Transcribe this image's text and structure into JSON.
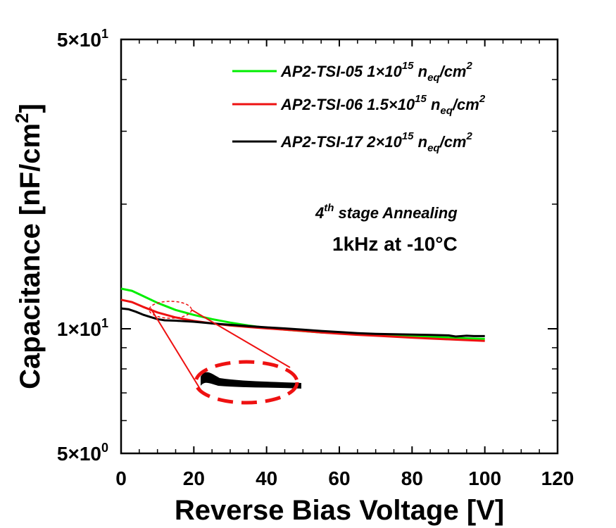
{
  "chart_data": {
    "type": "line",
    "xlabel": "Reverse Bias Voltage [V]",
    "ylabel": "Capacitance [nF/cm²]",
    "ylabel_base": "Capacitance [nF/cm",
    "ylabel_sup": "2",
    "ylabel_end": "]",
    "xlim": [
      0,
      120
    ],
    "ylim": [
      5,
      50
    ],
    "yscale": "log",
    "xticks": [
      "0",
      "20",
      "40",
      "60",
      "80",
      "100",
      "120"
    ],
    "xtick_values": [
      0,
      20,
      40,
      60,
      80,
      100,
      120
    ],
    "yticks": [
      {
        "value": 5,
        "mantissa": "5×10",
        "exp": "0"
      },
      {
        "value": 10,
        "mantissa": "1×10",
        "exp": "1"
      },
      {
        "value": 50,
        "mantissa": "5×10",
        "exp": "1"
      }
    ],
    "legend_position": "top-right",
    "series": [
      {
        "name": "AP2-TSI-05 1×10¹⁵ neq/cm²",
        "label_main": "AP2-TSI-05 1×10",
        "label_exp": "15",
        "label_n": " n",
        "label_sub": "eq",
        "label_unit": "/cm",
        "label_unit_sup": "2",
        "color": "#00ee00",
        "x": [
          0,
          3,
          6,
          10,
          15,
          20,
          25,
          30,
          35,
          40,
          45,
          50,
          55,
          60,
          65,
          70,
          75,
          80,
          85,
          90,
          95,
          100
        ],
        "y": [
          12.5,
          12.35,
          12.0,
          11.55,
          11.1,
          10.8,
          10.55,
          10.35,
          10.18,
          10.05,
          9.95,
          9.87,
          9.8,
          9.75,
          9.7,
          9.66,
          9.63,
          9.59,
          9.56,
          9.52,
          9.48,
          9.45
        ]
      },
      {
        "name": "AP2-TSI-06 1.5×10¹⁵ neq/cm²",
        "label_main": "AP2-TSI-06 1.5×10",
        "label_exp": "15",
        "label_n": " n",
        "label_sub": "eq",
        "label_unit": "/cm",
        "label_unit_sup": "2",
        "color": "#ee1111",
        "x": [
          0,
          3,
          6,
          10,
          15,
          20,
          25,
          30,
          35,
          40,
          45,
          50,
          55,
          60,
          65,
          70,
          75,
          80,
          85,
          90,
          95,
          100
        ],
        "y": [
          11.75,
          11.6,
          11.3,
          10.95,
          10.65,
          10.45,
          10.3,
          10.18,
          10.1,
          10.02,
          9.95,
          9.88,
          9.8,
          9.73,
          9.67,
          9.62,
          9.57,
          9.52,
          9.47,
          9.43,
          9.39,
          9.35
        ]
      },
      {
        "name": "AP2-TSI-17 2×10¹⁵ neq/cm²",
        "label_main": "AP2-TSI-17 2×10",
        "label_exp": "15",
        "label_n": " n",
        "label_sub": "eq",
        "label_unit": "/cm",
        "label_unit_sup": "2",
        "color": "#000000",
        "x": [
          0,
          2,
          4,
          6,
          8,
          10,
          12,
          15,
          20,
          25,
          30,
          35,
          40,
          45,
          50,
          55,
          60,
          65,
          70,
          75,
          80,
          85,
          90,
          92,
          95,
          97,
          100
        ],
        "y": [
          11.2,
          11.15,
          11.0,
          10.82,
          10.68,
          10.55,
          10.48,
          10.46,
          10.4,
          10.3,
          10.22,
          10.15,
          10.08,
          10.02,
          9.95,
          9.88,
          9.82,
          9.76,
          9.72,
          9.7,
          9.68,
          9.66,
          9.64,
          9.58,
          9.62,
          9.6,
          9.6
        ]
      }
    ],
    "annotations": {
      "stage_main": "4",
      "stage_sup": "th",
      "stage_rest": " stage Annealing",
      "condition": "1kHz at -10°C"
    }
  }
}
